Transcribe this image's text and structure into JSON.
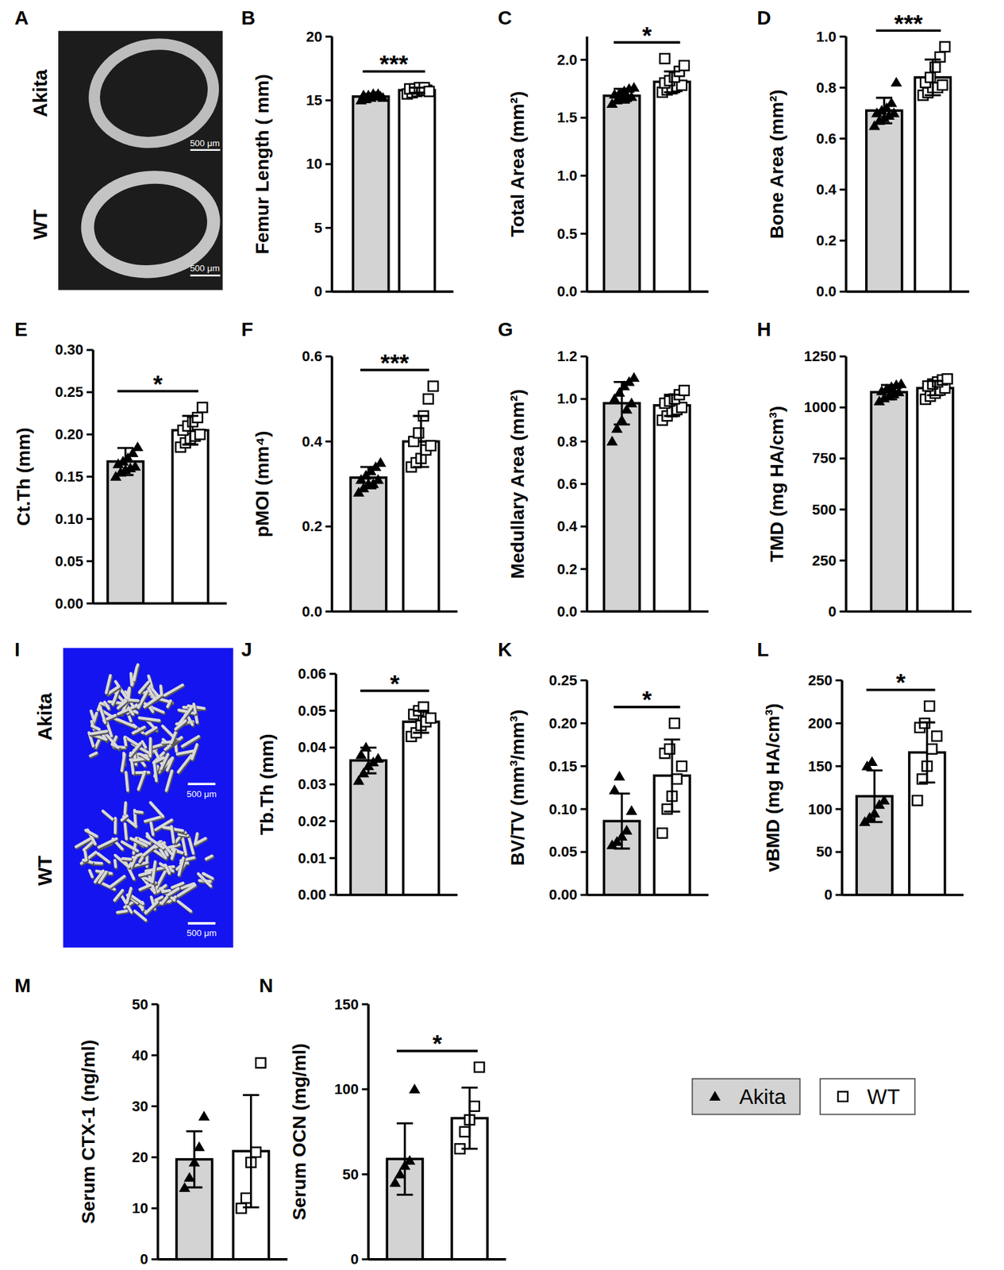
{
  "chart_data": [
    {
      "type": "bar",
      "title": "B",
      "y_label": "Femur Length ( mm)",
      "categories": [
        null,
        null
      ],
      "values": [
        15.3,
        15.8
      ],
      "errors": [
        0.2,
        0.2
      ],
      "points": [
        [
          15.0,
          15.1,
          15.2,
          15.3,
          15.3,
          15.4,
          15.4,
          15.5,
          15.5,
          15.2
        ],
        [
          15.5,
          15.6,
          15.7,
          15.8,
          15.8,
          15.9,
          15.9,
          16.0,
          16.0,
          15.7
        ]
      ],
      "colors": [
        "#d3d3d3",
        "#ffffff"
      ],
      "ylim": [
        0,
        20
      ],
      "yticks": [
        0,
        5,
        10,
        15,
        20
      ],
      "significance": "***"
    },
    {
      "type": "bar",
      "title": "C",
      "y_label": "Total Area (mm²)",
      "categories": [
        null,
        null
      ],
      "values": [
        1.69,
        1.81
      ],
      "errors": [
        0.06,
        0.09
      ],
      "points": [
        [
          1.62,
          1.65,
          1.66,
          1.67,
          1.68,
          1.7,
          1.71,
          1.73,
          1.75,
          1.76
        ],
        [
          1.72,
          1.74,
          1.75,
          1.77,
          1.78,
          1.8,
          1.82,
          1.85,
          1.9,
          1.95,
          2.01
        ]
      ],
      "colors": [
        "#d3d3d3",
        "#ffffff"
      ],
      "ylim": [
        0,
        2.2
      ],
      "yticks": [
        {
          "value": 0,
          "label": "0.0"
        },
        0.5,
        {
          "value": 1,
          "label": "1.0"
        },
        1.5,
        {
          "value": 2,
          "label": "2.0"
        }
      ],
      "significance": "*"
    },
    {
      "type": "bar",
      "title": "D",
      "y_label": "Bone Area (mm²)",
      "categories": [
        null,
        null
      ],
      "values": [
        0.71,
        0.84
      ],
      "errors": [
        0.05,
        0.07
      ],
      "points": [
        [
          0.65,
          0.67,
          0.68,
          0.69,
          0.7,
          0.7,
          0.71,
          0.72,
          0.74,
          0.82
        ],
        [
          0.77,
          0.78,
          0.8,
          0.8,
          0.81,
          0.82,
          0.84,
          0.88,
          0.92,
          0.96
        ]
      ],
      "colors": [
        "#d3d3d3",
        "#ffffff"
      ],
      "ylim": [
        0,
        1
      ],
      "yticks": [
        {
          "value": 0,
          "label": "0.0"
        },
        0.2,
        0.4,
        0.6,
        0.8,
        {
          "value": 1,
          "label": "1.0"
        }
      ],
      "significance": "***"
    },
    {
      "type": "bar",
      "title": "E",
      "y_label": "Ct.Th (mm)",
      "categories": [
        null,
        null
      ],
      "values": [
        0.168,
        0.205
      ],
      "errors": [
        0.016,
        0.017
      ],
      "points": [
        [
          0.15,
          0.155,
          0.158,
          0.16,
          0.162,
          0.165,
          0.168,
          0.172,
          0.178,
          0.185
        ],
        [
          0.185,
          0.19,
          0.195,
          0.198,
          0.2,
          0.205,
          0.21,
          0.215,
          0.22,
          0.232
        ]
      ],
      "colors": [
        "#d3d3d3",
        "#ffffff"
      ],
      "ylim": [
        0,
        0.3
      ],
      "yticks": [
        {
          "value": 0,
          "label": "0.00"
        },
        0.05,
        {
          "value": 0.1,
          "label": "0.10"
        },
        0.15,
        {
          "value": 0.2,
          "label": "0.20"
        },
        0.25,
        {
          "value": 0.3,
          "label": "0.30"
        }
      ],
      "significance": "*"
    },
    {
      "type": "bar",
      "title": "F",
      "y_label": "pMOI (mm⁴)",
      "categories": [
        null,
        null
      ],
      "values": [
        0.315,
        0.4
      ],
      "errors": [
        0.025,
        0.06
      ],
      "points": [
        [
          0.28,
          0.29,
          0.3,
          0.3,
          0.31,
          0.31,
          0.32,
          0.33,
          0.34,
          0.35
        ],
        [
          0.34,
          0.35,
          0.36,
          0.38,
          0.39,
          0.4,
          0.42,
          0.46,
          0.5,
          0.53
        ]
      ],
      "colors": [
        "#d3d3d3",
        "#ffffff"
      ],
      "ylim": [
        0,
        0.6
      ],
      "yticks": [
        {
          "value": 0,
          "label": "0.0"
        },
        0.2,
        0.4,
        0.6
      ],
      "significance": "***"
    },
    {
      "type": "bar",
      "title": "G",
      "y_label": "Medullary Area (mm²)",
      "categories": [
        null,
        null
      ],
      "values": [
        0.98,
        0.97
      ],
      "errors": [
        0.1,
        0.05
      ],
      "points": [
        [
          0.8,
          0.86,
          0.9,
          0.95,
          0.98,
          1.0,
          1.03,
          1.06,
          1.08,
          1.1
        ],
        [
          0.9,
          0.92,
          0.94,
          0.95,
          0.96,
          0.98,
          0.99,
          1.0,
          1.02,
          1.04
        ]
      ],
      "colors": [
        "#d3d3d3",
        "#ffffff"
      ],
      "ylim": [
        0,
        1.2
      ],
      "yticks": [
        {
          "value": 0,
          "label": "0.0"
        },
        0.2,
        0.4,
        0.6,
        0.8,
        {
          "value": 1,
          "label": "1.0"
        },
        1.2
      ]
    },
    {
      "type": "bar",
      "title": "H",
      "y_label": "TMD (mg HA/cm³)",
      "categories": [
        null,
        null
      ],
      "values": [
        1075,
        1095
      ],
      "errors": [
        35,
        35
      ],
      "points": [
        [
          1030,
          1045,
          1055,
          1065,
          1075,
          1080,
          1090,
          1100,
          1110,
          1115
        ],
        [
          1040,
          1055,
          1070,
          1085,
          1095,
          1105,
          1115,
          1125,
          1135,
          1140
        ]
      ],
      "colors": [
        "#d3d3d3",
        "#ffffff"
      ],
      "ylim": [
        0,
        1250
      ],
      "yticks": [
        0,
        250,
        500,
        750,
        1000,
        1250
      ]
    },
    {
      "type": "bar",
      "title": "J",
      "y_label": "Tb.Th  (mm)",
      "categories": [
        null,
        null
      ],
      "values": [
        0.0365,
        0.047
      ],
      "errors": [
        0.0035,
        0.003
      ],
      "points": [
        [
          0.031,
          0.033,
          0.035,
          0.036,
          0.037,
          0.038,
          0.04
        ],
        [
          0.043,
          0.044,
          0.046,
          0.047,
          0.048,
          0.049,
          0.05,
          0.051
        ]
      ],
      "colors": [
        "#d3d3d3",
        "#ffffff"
      ],
      "ylim": [
        0,
        0.06
      ],
      "yticks": [
        {
          "value": 0,
          "label": "0.00"
        },
        0.01,
        0.02,
        0.03,
        0.04,
        0.05,
        0.06
      ],
      "significance": "*"
    },
    {
      "type": "bar",
      "title": "K",
      "y_label": "BV/TV (mm³/mm³)",
      "categories": [
        null,
        null
      ],
      "values": [
        0.086,
        0.139
      ],
      "errors": [
        0.032,
        0.042
      ],
      "points": [
        [
          0.058,
          0.062,
          0.068,
          0.075,
          0.098,
          0.122,
          0.138
        ],
        [
          0.072,
          0.1,
          0.115,
          0.135,
          0.15,
          0.165,
          0.17,
          0.2
        ]
      ],
      "colors": [
        "#d3d3d3",
        "#ffffff"
      ],
      "ylim": [
        0,
        0.25
      ],
      "yticks": [
        {
          "value": 0,
          "label": "0.00"
        },
        0.05,
        {
          "value": 0.1,
          "label": "0.10"
        },
        0.15,
        {
          "value": 0.2,
          "label": "0.20"
        },
        0.25
      ],
      "significance": "*"
    },
    {
      "type": "bar",
      "title": "L",
      "y_label": "vBMD (mg  HA/cm³)",
      "categories": [
        null,
        null
      ],
      "values": [
        115,
        166
      ],
      "errors": [
        30,
        35
      ],
      "points": [
        [
          85,
          90,
          95,
          105,
          110,
          150,
          155
        ],
        [
          110,
          135,
          150,
          170,
          185,
          195,
          200,
          220
        ]
      ],
      "colors": [
        "#d3d3d3",
        "#ffffff"
      ],
      "ylim": [
        0,
        250
      ],
      "yticks": [
        0,
        50,
        100,
        150,
        200,
        250
      ],
      "significance": "*"
    },
    {
      "type": "bar",
      "title": "M",
      "y_label": "Serum CTX-1 (ng/ml)",
      "categories": [
        null,
        null
      ],
      "values": [
        19.6,
        21.2
      ],
      "errors": [
        5.5,
        11
      ],
      "points": [
        [
          14,
          16,
          19,
          22,
          28
        ],
        [
          10,
          12,
          19,
          21,
          38.5
        ]
      ],
      "colors": [
        "#d3d3d3",
        "#ffffff"
      ],
      "ylim": [
        0,
        50
      ],
      "yticks": [
        0,
        10,
        20,
        30,
        40,
        50
      ]
    },
    {
      "type": "bar",
      "title": "N",
      "y_label": "Serum OCN  (mg/ml)",
      "categories": [
        null,
        null
      ],
      "values": [
        59,
        83
      ],
      "errors": [
        21,
        18
      ],
      "points": [
        [
          45,
          50,
          55,
          58,
          100
        ],
        [
          65,
          75,
          82,
          90,
          113
        ]
      ],
      "colors": [
        "#d3d3d3",
        "#ffffff"
      ],
      "ylim": [
        0,
        150
      ],
      "yticks": [
        0,
        50,
        100,
        150
      ],
      "significance": "*"
    }
  ],
  "images": [
    {
      "title": "A",
      "labels": [
        "Akita",
        "WT"
      ],
      "scale_bar": "500 μm"
    },
    {
      "title": "I",
      "labels": [
        "Akita",
        "WT"
      ],
      "scale_bar": "500 μm"
    }
  ],
  "legend": {
    "entries": [
      {
        "name": "Akita",
        "color": "#d3d3d3",
        "marker": "triangle"
      },
      {
        "name": "WT",
        "color": "#ffffff",
        "marker": "square"
      }
    ]
  }
}
